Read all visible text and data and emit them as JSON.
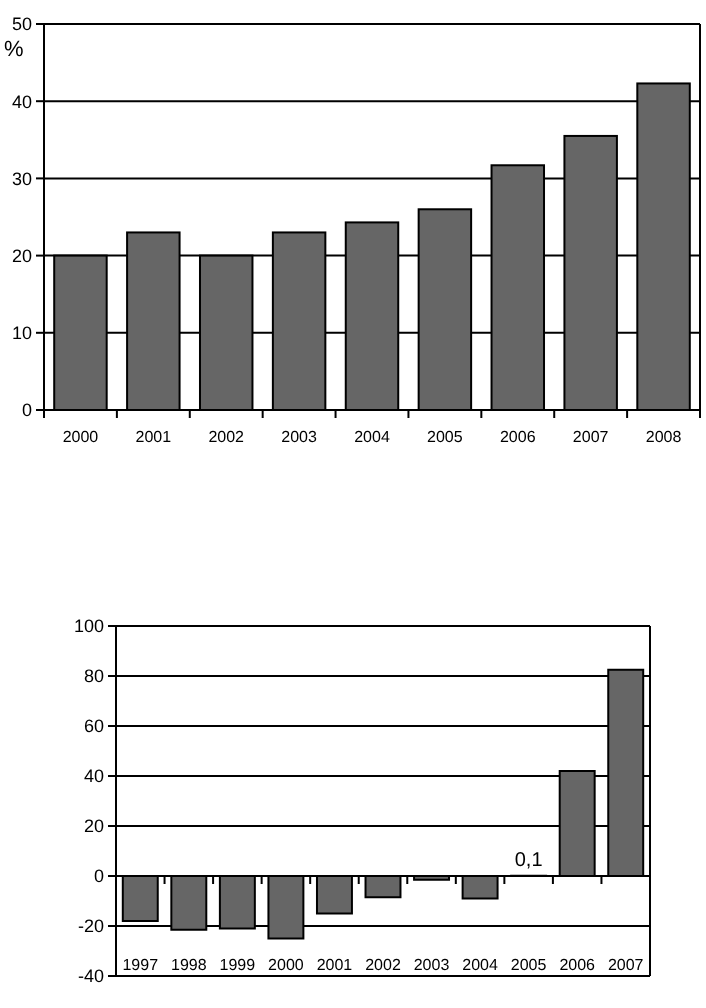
{
  "chart_data": [
    {
      "type": "bar",
      "ylabel": "%",
      "categories": [
        "2000",
        "2001",
        "2002",
        "2003",
        "2004",
        "2005",
        "2006",
        "2007",
        "2008"
      ],
      "series": [
        {
          "color": "#666666",
          "values": [
            20,
            23,
            20,
            23,
            24.3,
            26,
            31.7,
            35.5,
            42.3
          ]
        }
      ],
      "ylim": [
        0,
        50
      ],
      "yticks": [
        0,
        10,
        20,
        30,
        40,
        50
      ],
      "grid": "y"
    },
    {
      "type": "bar",
      "categories": [
        "1997",
        "1998",
        "1999",
        "2000",
        "2001",
        "2002",
        "2003",
        "2004",
        "2005",
        "2006",
        "2007"
      ],
      "series": [
        {
          "color": "#666666",
          "values": [
            -18,
            -21.5,
            -21,
            -25,
            -15,
            -8.5,
            -1.5,
            -9,
            0.1,
            42,
            82.5
          ],
          "value_labels": [
            null,
            null,
            null,
            null,
            null,
            null,
            null,
            null,
            "0,1",
            null,
            null
          ]
        }
      ],
      "ylim": [
        -40,
        100
      ],
      "yticks": [
        -40,
        -20,
        0,
        20,
        40,
        60,
        80,
        100
      ],
      "grid": "y"
    }
  ]
}
